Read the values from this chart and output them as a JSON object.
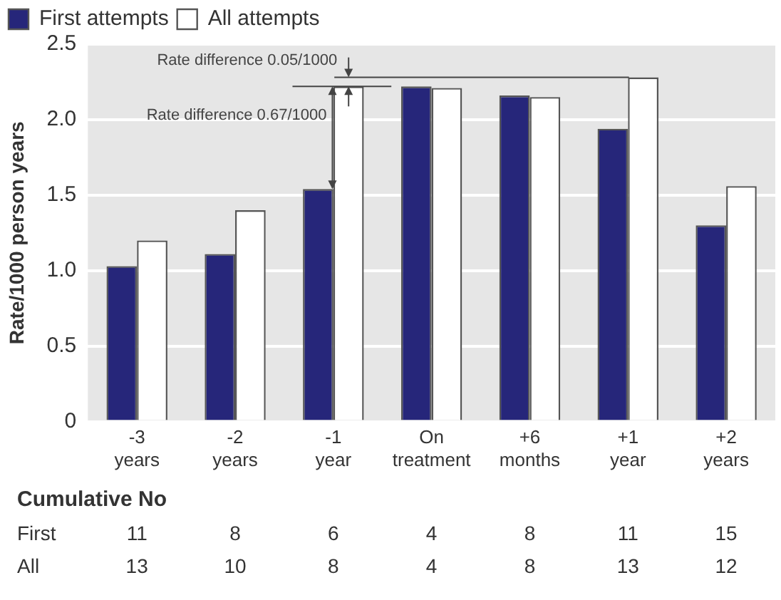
{
  "chart_data": {
    "type": "bar",
    "ylabel": "Rate/1000 person years",
    "categories": [
      "-3 years",
      "-2 years",
      "-1 year",
      "On treatment",
      "+6 months",
      "+1 year",
      "+2 years"
    ],
    "series": [
      {
        "name": "First attempts",
        "color": "#26267a",
        "values": [
          1.03,
          1.11,
          1.54,
          2.22,
          2.16,
          1.94,
          1.3
        ]
      },
      {
        "name": "All attempts",
        "color": "#ffffff",
        "values": [
          1.2,
          1.4,
          2.22,
          2.21,
          2.15,
          2.28,
          1.56
        ]
      }
    ],
    "ylim": [
      0,
      2.5
    ],
    "yticks": [
      0,
      0.5,
      {
        "value": 1,
        "label": "1.0"
      },
      1.5,
      {
        "value": 2,
        "label": "2.0"
      },
      2.5
    ],
    "grid": "y",
    "legend": "top left",
    "annotations": [
      {
        "text": "Rate difference 0.05/1000",
        "x": "+1 year",
        "y": 2.28
      },
      {
        "text": "Rate difference 0.67/1000",
        "x": "-1 year",
        "y": 1.54
      },
      "Cumulative No",
      "First",
      "11",
      "8",
      "6",
      "4",
      "8",
      "11",
      "15",
      "All",
      "13",
      "10",
      "8",
      "4",
      "8",
      "13",
      "12"
    ]
  }
}
